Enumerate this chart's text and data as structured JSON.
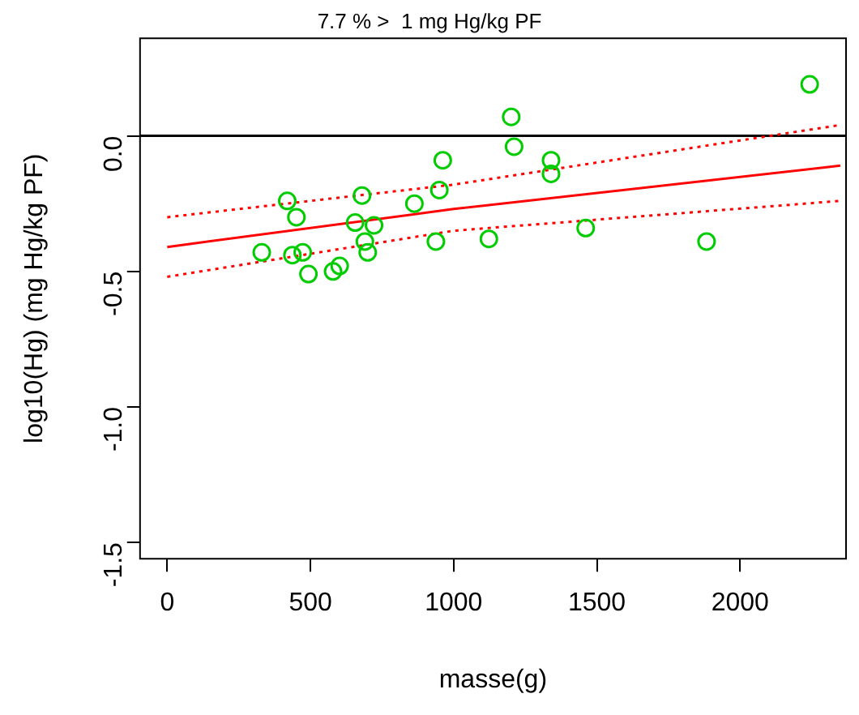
{
  "chart_data": {
    "type": "scatter",
    "title": "7.7 % >  1 mg Hg/kg PF",
    "xlabel": "masse(g)",
    "ylabel": "log10(Hg) (mg Hg/kg PF)",
    "xlim": [
      -95,
      2370
    ],
    "ylim": [
      -1.56,
      0.36
    ],
    "xticks": [
      0,
      500,
      1000,
      1500,
      2000
    ],
    "yticks": [
      {
        "value": -1.5,
        "label": "-1.5"
      },
      {
        "value": -1.0,
        "label": "-1.0"
      },
      {
        "value": -0.5,
        "label": "-0.5"
      },
      {
        "value": 0,
        "label": "0.0"
      }
    ],
    "grid": false,
    "legend": false,
    "ref_lines": [
      {
        "axis": "y",
        "value": 0,
        "color": "#000000"
      }
    ],
    "series": [
      {
        "color": "#00cc00",
        "marker": "circle",
        "x": [
          2243,
          1201,
          1211,
          962,
          1340,
          1340,
          950,
          419,
          680,
          863,
          451,
          656,
          722,
          1461,
          690,
          938,
          1123,
          1883,
          700,
          330,
          473,
          437,
          602,
          579,
          493
        ],
        "values": [
          0.19,
          0.07,
          -0.04,
          -0.09,
          -0.09,
          -0.14,
          -0.2,
          -0.24,
          -0.22,
          -0.25,
          -0.3,
          -0.32,
          -0.33,
          -0.34,
          -0.39,
          -0.39,
          -0.38,
          -0.39,
          -0.43,
          -0.43,
          -0.43,
          -0.44,
          -0.48,
          -0.5,
          -0.51
        ]
      },
      {
        "type": "line",
        "color": "#ff0000",
        "marker": "none",
        "line_style": "solid",
        "x": [
          0,
          1000,
          2350
        ],
        "values": [
          -0.41,
          -0.27,
          -0.11
        ]
      },
      {
        "type": "line",
        "color": "#ff0000",
        "marker": "none",
        "line_style": "dotted",
        "x": [
          0,
          1000,
          2350
        ],
        "values": [
          -0.52,
          -0.35,
          -0.24
        ]
      },
      {
        "type": "line",
        "color": "#ff0000",
        "marker": "none",
        "line_style": "dotted",
        "x": [
          0,
          1000,
          2350
        ],
        "values": [
          -0.3,
          -0.18,
          0.04
        ]
      }
    ]
  }
}
